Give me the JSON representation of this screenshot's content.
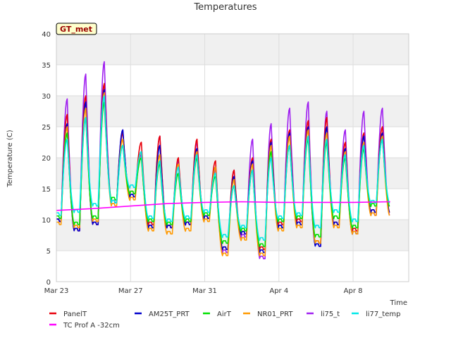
{
  "chart_data": {
    "type": "line",
    "title": "Temperatures",
    "xlabel": "Time",
    "ylabel": "Temperature (C)",
    "ylim": [
      0,
      40
    ],
    "xlim": [
      "2023-03-23",
      "2023-04-11"
    ],
    "x_ticks": [
      {
        "date": "2023-03-23",
        "label": "Mar 23"
      },
      {
        "date": "2023-03-27",
        "label": "Mar 27"
      },
      {
        "date": "2023-03-31",
        "label": "Mar 31"
      },
      {
        "date": "2023-04-04",
        "label": "Apr 4"
      },
      {
        "date": "2023-04-08",
        "label": "Apr 8"
      }
    ],
    "y_ticks": [
      0,
      5,
      10,
      15,
      20,
      25,
      30,
      35,
      40
    ],
    "grid": true,
    "badge": "GT_met",
    "legend_position": "bottom",
    "days": [
      "2023-03-23",
      "2023-03-24",
      "2023-03-25",
      "2023-03-26",
      "2023-03-27",
      "2023-03-28",
      "2023-03-29",
      "2023-03-30",
      "2023-03-31",
      "2023-04-01",
      "2023-04-02",
      "2023-04-03",
      "2023-04-04",
      "2023-04-05",
      "2023-04-06",
      "2023-04-07",
      "2023-04-08",
      "2023-04-09"
    ],
    "series": [
      {
        "name": "PanelT",
        "color": "#e8000b",
        "daily_min": [
          9.5,
          8,
          9,
          12.5,
          14,
          9,
          8.5,
          9,
          10,
          5,
          7.5,
          5,
          9,
          9.5,
          6,
          9,
          8,
          11
        ],
        "daily_max": [
          27,
          30,
          32,
          24,
          22.5,
          23.5,
          20,
          23,
          19.5,
          18,
          20,
          23,
          24.5,
          26,
          26.5,
          22.5,
          24,
          25
        ]
      },
      {
        "name": "AM25T_PRT",
        "color": "#0000cc",
        "daily_min": [
          9.5,
          8,
          9,
          12.5,
          13.5,
          8.5,
          8.5,
          9,
          10,
          5,
          7.5,
          4.5,
          8.5,
          9,
          5.5,
          9,
          7.5,
          11
        ],
        "daily_max": [
          25.5,
          29,
          31,
          24.5,
          21,
          22,
          19,
          21.5,
          18.5,
          17,
          19.5,
          22.5,
          24,
          25,
          25,
          21.5,
          23.5,
          24
        ]
      },
      {
        "name": "AirT",
        "color": "#00e000",
        "daily_min": [
          10,
          9,
          10,
          13,
          14,
          9.5,
          9,
          9.5,
          10.5,
          6,
          8,
          5.5,
          9.5,
          10,
          7,
          10,
          8.5,
          12
        ],
        "daily_max": [
          24,
          26.5,
          29,
          22,
          20,
          19,
          17.5,
          20,
          17,
          15.5,
          18,
          21,
          22,
          23,
          22.5,
          20,
          21.5,
          23
        ]
      },
      {
        "name": "NR01_PRT",
        "color": "#ff9900",
        "daily_min": [
          9,
          8.5,
          9.5,
          12,
          13,
          8,
          7.5,
          8,
          9.5,
          4,
          6.5,
          4,
          8,
          8.5,
          6,
          8.5,
          7.5,
          10.5
        ],
        "daily_max": [
          25,
          28,
          30.5,
          23,
          21,
          20.5,
          19,
          21,
          18.5,
          16.5,
          19,
          22,
          23.5,
          24.5,
          24,
          21,
          22.5,
          23.5
        ]
      },
      {
        "name": "li75_t",
        "color": "#a020f0",
        "daily_min": [
          9.5,
          8,
          9,
          12.5,
          13.5,
          8.5,
          8.5,
          9,
          10,
          4.5,
          7,
          3.5,
          8.5,
          9,
          5.5,
          9,
          7.5,
          10.5
        ],
        "daily_max": [
          29.5,
          33.5,
          35.5,
          24.5,
          20.5,
          23.5,
          19.5,
          22.5,
          18,
          18,
          23,
          25.5,
          28,
          29,
          27.5,
          24.5,
          27.5,
          28
        ]
      },
      {
        "name": "li77_temp",
        "color": "#00e8e8",
        "daily_min": [
          10.5,
          11,
          12,
          12.5,
          15,
          10,
          9.5,
          10,
          11,
          7,
          8.5,
          6.5,
          10,
          10.5,
          8.5,
          11,
          9.5,
          12.5
        ],
        "daily_max": [
          23,
          26.5,
          30,
          22,
          21,
          19.5,
          18.5,
          20.5,
          17.5,
          15.5,
          18,
          20,
          22,
          23.5,
          23,
          20.5,
          22,
          23
        ]
      },
      {
        "name": "TC Prof A -32cm",
        "color": "#ff00ff",
        "x": [
          "2023-03-23",
          "2023-03-25",
          "2023-03-27",
          "2023-03-29",
          "2023-03-31",
          "2023-04-02",
          "2023-04-04",
          "2023-04-06",
          "2023-04-08",
          "2023-04-10"
        ],
        "y": [
          11.5,
          11.8,
          12.2,
          12.6,
          12.8,
          12.9,
          12.8,
          12.8,
          12.8,
          12.9
        ]
      }
    ]
  }
}
